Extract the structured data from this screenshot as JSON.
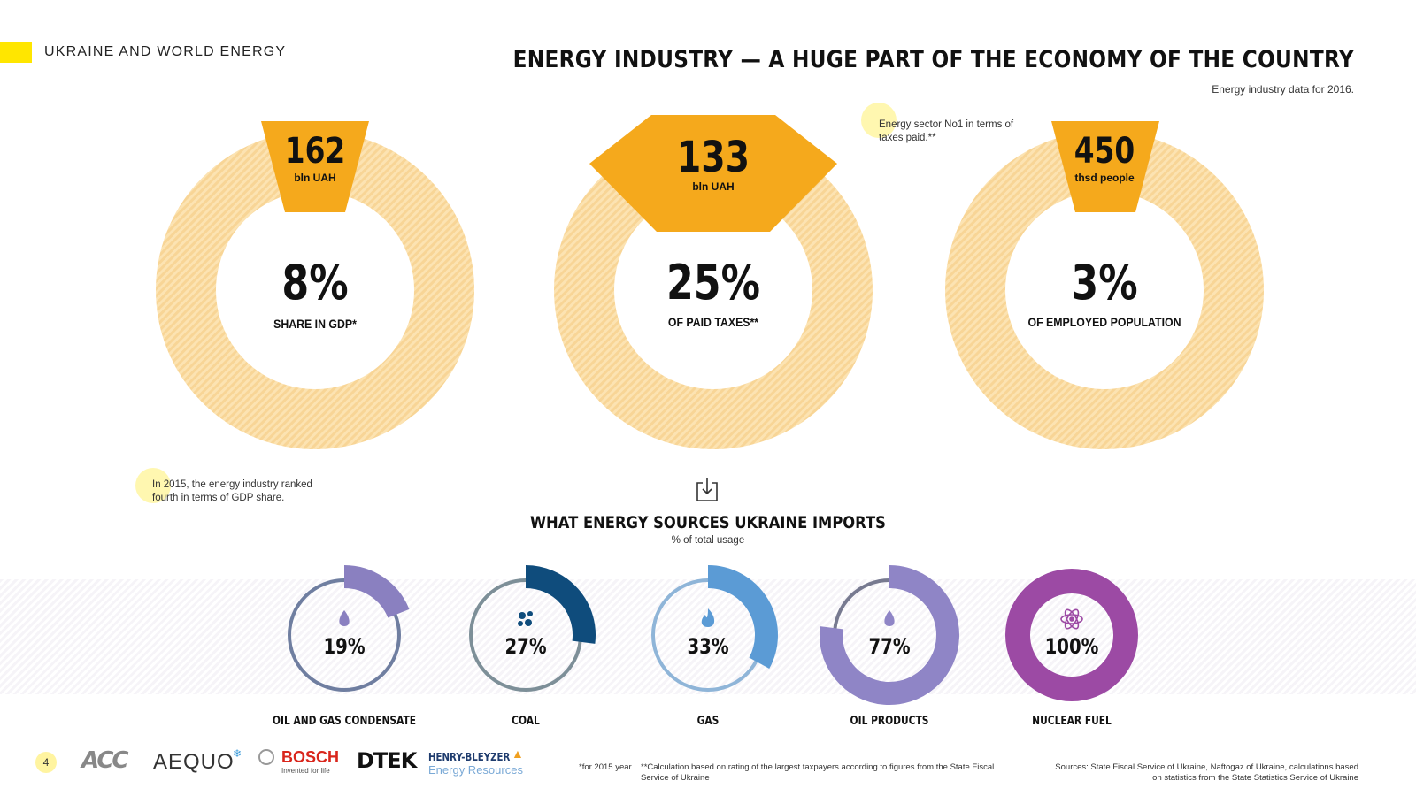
{
  "header": {
    "section_label": "UKRAINE AND WORLD ENERGY",
    "title": "ENERGY INDUSTRY — A HUGE PART OF THE ECONOMY OF THE COUNTRY",
    "subtitle": "Energy industry data for 2016."
  },
  "colors": {
    "accent_yellow": "#ffe600",
    "donut_fill": "#fbdfa8",
    "tab_orange": "#f5a91c",
    "oil_gas": "#8a80c0",
    "coal": "#0f4c7c",
    "gas": "#5b9bd5",
    "oil_products": "#8f85c6",
    "nuclear": "#9c4aa4",
    "track_gray": "#7c8a9e"
  },
  "indicators": [
    {
      "value": "162",
      "unit": "bln UAH",
      "percent": "8%",
      "label": "SHARE IN GDP*"
    },
    {
      "value": "133",
      "unit": "bln UAH",
      "percent": "25%",
      "label": "OF PAID TAXES**"
    },
    {
      "value": "450",
      "unit": "thsd people",
      "percent": "3%",
      "label": "OF EMPLOYED POPULATION"
    }
  ],
  "notes": {
    "taxes_note": "Energy sector No1 in terms of taxes paid.**",
    "gdp_note": "In 2015, the energy industry ranked fourth in terms of GDP share."
  },
  "imports": {
    "title": "WHAT ENERGY SOURCES UKRAINE IMPORTS",
    "subtitle": "% of total usage",
    "items": [
      {
        "label": "OIL AND GAS CONDENSATE",
        "percent": "19%",
        "value": 19,
        "icon": "oil-drop-icon"
      },
      {
        "label": "COAL",
        "percent": "27%",
        "value": 27,
        "icon": "coal-icon"
      },
      {
        "label": "GAS",
        "percent": "33%",
        "value": 33,
        "icon": "flame-icon"
      },
      {
        "label": "OIL PRODUCTS",
        "percent": "77%",
        "value": 77,
        "icon": "oil-drop-icon"
      },
      {
        "label": "NUCLEAR FUEL",
        "percent": "100%",
        "value": 100,
        "icon": "atom-icon"
      }
    ]
  },
  "footer": {
    "page_number": "4",
    "logos": {
      "acc": "ACC",
      "aequo": "AEQUO",
      "bosch": "BOSCH",
      "bosch_tagline": "Invented for life",
      "dtek": "DTEK",
      "henry": "HENRY-BLEYZER",
      "henry_sub": "Energy Resources"
    },
    "footnote_year": "*for 2015 year",
    "footnote_calc": "**Calculation based on rating of the largest taxpayers according to figures from the State Fiscal Service of Ukraine",
    "sources": "Sources: State Fiscal Service of Ukraine, Naftogaz of Ukraine, calculations based on statistics from the State Statistics Service of Ukraine"
  }
}
